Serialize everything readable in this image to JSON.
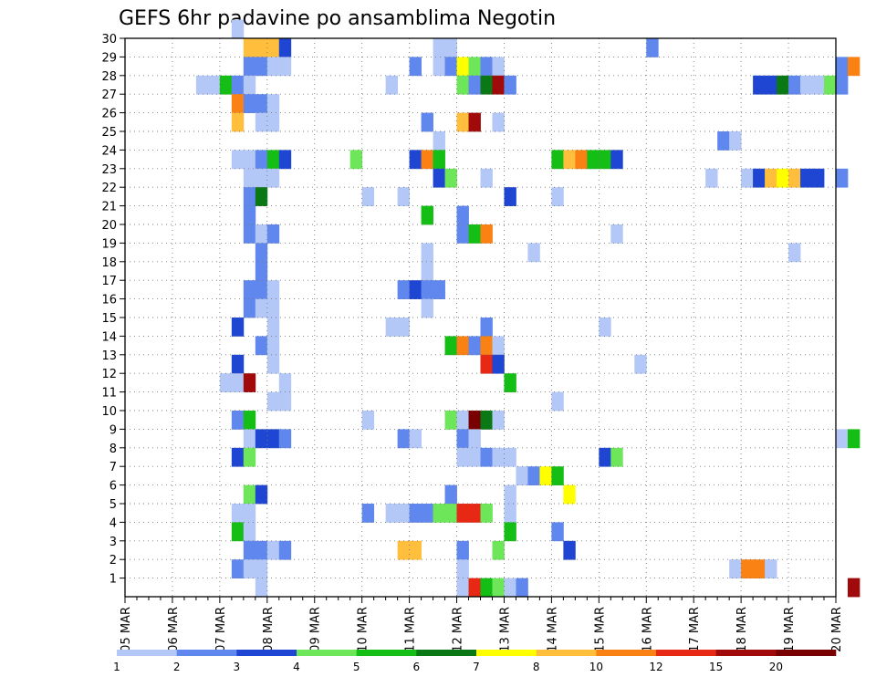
{
  "chart_data": {
    "type": "heatmap",
    "title": "GEFS 6hr padavine po ansamblima Negotin",
    "x_start": "2025-03-05T00",
    "x_step_hours": 6,
    "x_ticks": [
      "05 MAR",
      "06 MAR",
      "07 MAR",
      "08 MAR",
      "09 MAR",
      "10 MAR",
      "11 MAR",
      "12 MAR",
      "13 MAR",
      "14 MAR",
      "15 MAR",
      "16 MAR",
      "17 MAR",
      "18 MAR",
      "19 MAR",
      "20 MAR"
    ],
    "y_ticks": [
      1,
      2,
      3,
      4,
      5,
      6,
      7,
      8,
      9,
      10,
      11,
      12,
      13,
      14,
      15,
      16,
      17,
      18,
      19,
      20,
      21,
      22,
      23,
      24,
      25,
      26,
      27,
      28,
      29,
      30
    ],
    "ylim": [
      0,
      30
    ],
    "grid": true,
    "legend_position": "bottom",
    "color_levels": [
      "1",
      "2",
      "3",
      "4",
      "5",
      "6",
      "7",
      "8",
      "10",
      "12",
      "15",
      "20"
    ],
    "colors": [
      "#b4c8f8",
      "#5f87ee",
      "#1e46d2",
      "#6ee65a",
      "#14be14",
      "#0a7814",
      "#ffff00",
      "#ffbe3c",
      "#fa8214",
      "#e62814",
      "#a00a0a",
      "#780000"
    ],
    "cells": [
      [
        9,
        30,
        0
      ],
      [
        10,
        29,
        7
      ],
      [
        11,
        29,
        7
      ],
      [
        12,
        29,
        7
      ],
      [
        13,
        29,
        2
      ],
      [
        26,
        29,
        0
      ],
      [
        27,
        29,
        0
      ],
      [
        44,
        29,
        1
      ],
      [
        10,
        28,
        1
      ],
      [
        11,
        28,
        1
      ],
      [
        12,
        28,
        0
      ],
      [
        13,
        28,
        0
      ],
      [
        24,
        28,
        1
      ],
      [
        26,
        28,
        0
      ],
      [
        27,
        28,
        1
      ],
      [
        28,
        28,
        6
      ],
      [
        29,
        28,
        3
      ],
      [
        30,
        28,
        1
      ],
      [
        31,
        28,
        0
      ],
      [
        60,
        28,
        1
      ],
      [
        61,
        28,
        8
      ],
      [
        6,
        27,
        0
      ],
      [
        7,
        27,
        0
      ],
      [
        8,
        27,
        4
      ],
      [
        9,
        27,
        1
      ],
      [
        10,
        27,
        0
      ],
      [
        22,
        27,
        0
      ],
      [
        28,
        27,
        3
      ],
      [
        29,
        27,
        1
      ],
      [
        30,
        27,
        5
      ],
      [
        31,
        27,
        10
      ],
      [
        32,
        27,
        1
      ],
      [
        53,
        27,
        2
      ],
      [
        54,
        27,
        2
      ],
      [
        55,
        27,
        5
      ],
      [
        56,
        27,
        1
      ],
      [
        57,
        27,
        0
      ],
      [
        58,
        27,
        0
      ],
      [
        59,
        27,
        3
      ],
      [
        60,
        27,
        1
      ],
      [
        9,
        26,
        8
      ],
      [
        10,
        26,
        1
      ],
      [
        11,
        26,
        1
      ],
      [
        12,
        26,
        0
      ],
      [
        9,
        25,
        7
      ],
      [
        11,
        25,
        0
      ],
      [
        12,
        25,
        0
      ],
      [
        25,
        25,
        1
      ],
      [
        28,
        25,
        7
      ],
      [
        29,
        25,
        10
      ],
      [
        31,
        25,
        0
      ],
      [
        26,
        24,
        0
      ],
      [
        50,
        24,
        1
      ],
      [
        51,
        24,
        0
      ],
      [
        9,
        23,
        0
      ],
      [
        10,
        23,
        0
      ],
      [
        11,
        23,
        1
      ],
      [
        12,
        23,
        4
      ],
      [
        13,
        23,
        2
      ],
      [
        19,
        23,
        3
      ],
      [
        24,
        23,
        2
      ],
      [
        25,
        23,
        8
      ],
      [
        26,
        23,
        4
      ],
      [
        36,
        23,
        4
      ],
      [
        37,
        23,
        7
      ],
      [
        38,
        23,
        8
      ],
      [
        39,
        23,
        4
      ],
      [
        40,
        23,
        4
      ],
      [
        41,
        23,
        2
      ],
      [
        10,
        22,
        0
      ],
      [
        11,
        22,
        0
      ],
      [
        12,
        22,
        0
      ],
      [
        26,
        22,
        2
      ],
      [
        27,
        22,
        3
      ],
      [
        30,
        22,
        0
      ],
      [
        49,
        22,
        0
      ],
      [
        52,
        22,
        0
      ],
      [
        53,
        22,
        2
      ],
      [
        54,
        22,
        7
      ],
      [
        55,
        22,
        6
      ],
      [
        56,
        22,
        7
      ],
      [
        57,
        22,
        2
      ],
      [
        58,
        22,
        2
      ],
      [
        60,
        22,
        1
      ],
      [
        10,
        21,
        1
      ],
      [
        11,
        21,
        5
      ],
      [
        20,
        21,
        0
      ],
      [
        23,
        21,
        0
      ],
      [
        32,
        21,
        2
      ],
      [
        36,
        21,
        0
      ],
      [
        10,
        20,
        1
      ],
      [
        25,
        20,
        4
      ],
      [
        28,
        20,
        1
      ],
      [
        10,
        19,
        1
      ],
      [
        11,
        19,
        0
      ],
      [
        12,
        19,
        1
      ],
      [
        28,
        19,
        1
      ],
      [
        29,
        19,
        4
      ],
      [
        30,
        19,
        8
      ],
      [
        41,
        19,
        0
      ],
      [
        11,
        18,
        1
      ],
      [
        25,
        18,
        0
      ],
      [
        34,
        18,
        0
      ],
      [
        56,
        18,
        0
      ],
      [
        11,
        17,
        1
      ],
      [
        25,
        17,
        0
      ],
      [
        10,
        16,
        1
      ],
      [
        11,
        16,
        1
      ],
      [
        12,
        16,
        0
      ],
      [
        23,
        16,
        1
      ],
      [
        24,
        16,
        2
      ],
      [
        25,
        16,
        1
      ],
      [
        26,
        16,
        1
      ],
      [
        10,
        15,
        1
      ],
      [
        11,
        15,
        0
      ],
      [
        12,
        15,
        0
      ],
      [
        25,
        15,
        0
      ],
      [
        9,
        14,
        2
      ],
      [
        12,
        14,
        0
      ],
      [
        22,
        14,
        0
      ],
      [
        23,
        14,
        0
      ],
      [
        30,
        14,
        1
      ],
      [
        40,
        14,
        0
      ],
      [
        11,
        13,
        1
      ],
      [
        12,
        13,
        0
      ],
      [
        27,
        13,
        4
      ],
      [
        28,
        13,
        8
      ],
      [
        29,
        13,
        1
      ],
      [
        30,
        13,
        8
      ],
      [
        31,
        13,
        0
      ],
      [
        9,
        12,
        2
      ],
      [
        12,
        12,
        0
      ],
      [
        30,
        12,
        9
      ],
      [
        31,
        12,
        2
      ],
      [
        43,
        12,
        0
      ],
      [
        8,
        11,
        0
      ],
      [
        9,
        11,
        0
      ],
      [
        10,
        11,
        10
      ],
      [
        13,
        11,
        0
      ],
      [
        32,
        11,
        4
      ],
      [
        12,
        10,
        0
      ],
      [
        13,
        10,
        0
      ],
      [
        36,
        10,
        0
      ],
      [
        9,
        9,
        1
      ],
      [
        10,
        9,
        4
      ],
      [
        20,
        9,
        0
      ],
      [
        27,
        9,
        3
      ],
      [
        28,
        9,
        0
      ],
      [
        29,
        9,
        11
      ],
      [
        30,
        9,
        5
      ],
      [
        31,
        9,
        0
      ],
      [
        10,
        8,
        0
      ],
      [
        11,
        8,
        2
      ],
      [
        12,
        8,
        2
      ],
      [
        13,
        8,
        1
      ],
      [
        23,
        8,
        1
      ],
      [
        24,
        8,
        0
      ],
      [
        28,
        8,
        1
      ],
      [
        29,
        8,
        0
      ],
      [
        60,
        8,
        0
      ],
      [
        61,
        8,
        4
      ],
      [
        9,
        7,
        2
      ],
      [
        10,
        7,
        3
      ],
      [
        28,
        7,
        0
      ],
      [
        29,
        7,
        0
      ],
      [
        30,
        7,
        1
      ],
      [
        31,
        7,
        0
      ],
      [
        32,
        7,
        0
      ],
      [
        40,
        7,
        2
      ],
      [
        41,
        7,
        3
      ],
      [
        33,
        6,
        0
      ],
      [
        34,
        6,
        1
      ],
      [
        35,
        6,
        6
      ],
      [
        36,
        6,
        4
      ],
      [
        10,
        5,
        3
      ],
      [
        11,
        5,
        2
      ],
      [
        27,
        5,
        1
      ],
      [
        32,
        5,
        0
      ],
      [
        37,
        5,
        6
      ],
      [
        9,
        4,
        0
      ],
      [
        10,
        4,
        0
      ],
      [
        20,
        4,
        1
      ],
      [
        22,
        4,
        0
      ],
      [
        23,
        4,
        0
      ],
      [
        24,
        4,
        1
      ],
      [
        25,
        4,
        1
      ],
      [
        26,
        4,
        3
      ],
      [
        27,
        4,
        3
      ],
      [
        28,
        4,
        9
      ],
      [
        29,
        4,
        9
      ],
      [
        30,
        4,
        3
      ],
      [
        32,
        4,
        0
      ],
      [
        9,
        3,
        4
      ],
      [
        10,
        3,
        0
      ],
      [
        32,
        3,
        4
      ],
      [
        36,
        3,
        1
      ],
      [
        10,
        2,
        1
      ],
      [
        11,
        2,
        1
      ],
      [
        12,
        2,
        0
      ],
      [
        13,
        2,
        1
      ],
      [
        23,
        2,
        7
      ],
      [
        24,
        2,
        7
      ],
      [
        28,
        2,
        1
      ],
      [
        31,
        2,
        3
      ],
      [
        37,
        2,
        2
      ],
      [
        9,
        1,
        1
      ],
      [
        10,
        1,
        0
      ],
      [
        11,
        1,
        0
      ],
      [
        28,
        1,
        0
      ],
      [
        51,
        1,
        0
      ],
      [
        52,
        1,
        8
      ],
      [
        53,
        1,
        8
      ],
      [
        54,
        1,
        0
      ],
      [
        11,
        0,
        0
      ],
      [
        28,
        0,
        0
      ],
      [
        29,
        0,
        9
      ],
      [
        30,
        0,
        4
      ],
      [
        31,
        0,
        3
      ],
      [
        32,
        0,
        0
      ],
      [
        33,
        0,
        1
      ],
      [
        61,
        0,
        10
      ]
    ]
  }
}
